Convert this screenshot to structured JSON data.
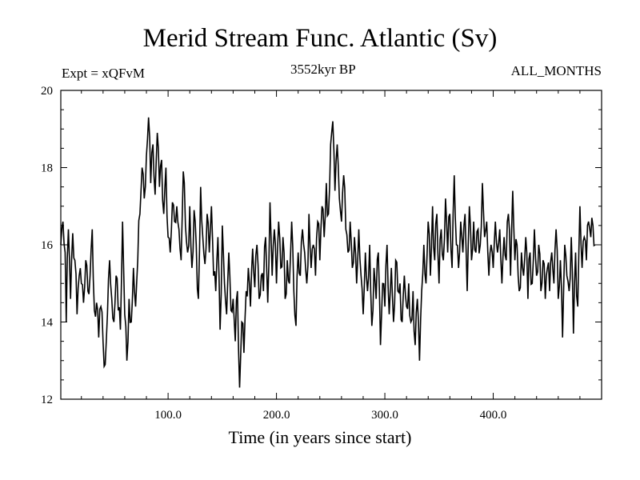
{
  "chart_data": {
    "type": "line",
    "title": "Merid Stream Func. Atlantic (Sv)",
    "subtitle_left": "Expt = xQFvM",
    "subtitle_center": "3552kyr BP",
    "subtitle_right": "ALL_MONTHS",
    "xlabel": "Time (in years since start)",
    "ylabel": "",
    "xlim": [
      1,
      500
    ],
    "ylim": [
      12,
      20
    ],
    "xticks": [
      100,
      200,
      300,
      400
    ],
    "xtick_labels": [
      "100.0",
      "200.0",
      "300.0",
      "400.0"
    ],
    "yticks": [
      12,
      14,
      16,
      18,
      20
    ],
    "ytick_labels": [
      "12",
      "14",
      "16",
      "18",
      "20"
    ],
    "color": "#000000",
    "anchors": [
      [
        1,
        16.0
      ],
      [
        3,
        16.6
      ],
      [
        5,
        15.8
      ],
      [
        6,
        14.0
      ],
      [
        8,
        16.4
      ],
      [
        10,
        14.6
      ],
      [
        12,
        16.3
      ],
      [
        14,
        15.6
      ],
      [
        16,
        14.2
      ],
      [
        18,
        15.2
      ],
      [
        20,
        15.0
      ],
      [
        22,
        14.5
      ],
      [
        24,
        15.6
      ],
      [
        26,
        14.8
      ],
      [
        28,
        15.2
      ],
      [
        30,
        16.4
      ],
      [
        32,
        14.3
      ],
      [
        34,
        14.5
      ],
      [
        36,
        13.6
      ],
      [
        38,
        14.4
      ],
      [
        40,
        13.5
      ],
      [
        42,
        12.9
      ],
      [
        44,
        14.2
      ],
      [
        46,
        15.6
      ],
      [
        48,
        14.6
      ],
      [
        50,
        14.0
      ],
      [
        52,
        15.2
      ],
      [
        54,
        14.3
      ],
      [
        56,
        13.8
      ],
      [
        58,
        16.6
      ],
      [
        60,
        14.2
      ],
      [
        62,
        13.0
      ],
      [
        64,
        14.6
      ],
      [
        66,
        14.0
      ],
      [
        68,
        15.4
      ],
      [
        70,
        14.4
      ],
      [
        72,
        15.6
      ],
      [
        74,
        16.8
      ],
      [
        76,
        18.0
      ],
      [
        78,
        17.2
      ],
      [
        80,
        18.3
      ],
      [
        82,
        19.3
      ],
      [
        84,
        17.6
      ],
      [
        86,
        18.6
      ],
      [
        88,
        17.3
      ],
      [
        90,
        18.9
      ],
      [
        92,
        17.5
      ],
      [
        94,
        18.2
      ],
      [
        96,
        16.8
      ],
      [
        98,
        18.0
      ],
      [
        100,
        16.2
      ],
      [
        102,
        15.8
      ],
      [
        104,
        17.1
      ],
      [
        106,
        16.6
      ],
      [
        108,
        17.0
      ],
      [
        110,
        16.4
      ],
      [
        112,
        15.6
      ],
      [
        114,
        17.9
      ],
      [
        116,
        16.5
      ],
      [
        118,
        15.8
      ],
      [
        120,
        17.0
      ],
      [
        122,
        15.4
      ],
      [
        124,
        16.9
      ],
      [
        126,
        16.0
      ],
      [
        128,
        14.6
      ],
      [
        130,
        17.5
      ],
      [
        132,
        16.2
      ],
      [
        134,
        15.5
      ],
      [
        136,
        16.8
      ],
      [
        138,
        15.8
      ],
      [
        140,
        17.0
      ],
      [
        142,
        15.2
      ],
      [
        144,
        14.8
      ],
      [
        146,
        16.2
      ],
      [
        148,
        13.8
      ],
      [
        150,
        16.5
      ],
      [
        152,
        15.0
      ],
      [
        154,
        14.2
      ],
      [
        156,
        15.8
      ],
      [
        158,
        14.3
      ],
      [
        160,
        14.6
      ],
      [
        162,
        13.5
      ],
      [
        164,
        14.8
      ],
      [
        166,
        12.3
      ],
      [
        168,
        14.0
      ],
      [
        170,
        13.2
      ],
      [
        172,
        14.8
      ],
      [
        174,
        15.4
      ],
      [
        176,
        14.4
      ],
      [
        178,
        15.9
      ],
      [
        180,
        14.9
      ],
      [
        182,
        16.0
      ],
      [
        184,
        14.6
      ],
      [
        186,
        15.2
      ],
      [
        188,
        14.8
      ],
      [
        190,
        16.2
      ],
      [
        192,
        14.5
      ],
      [
        194,
        17.1
      ],
      [
        196,
        15.2
      ],
      [
        198,
        16.4
      ],
      [
        200,
        15.0
      ],
      [
        202,
        16.6
      ],
      [
        204,
        15.4
      ],
      [
        206,
        16.2
      ],
      [
        208,
        14.6
      ],
      [
        210,
        15.6
      ],
      [
        212,
        15.0
      ],
      [
        214,
        16.6
      ],
      [
        216,
        14.8
      ],
      [
        218,
        13.9
      ],
      [
        220,
        15.8
      ],
      [
        222,
        15.2
      ],
      [
        224,
        16.4
      ],
      [
        226,
        15.8
      ],
      [
        228,
        15.0
      ],
      [
        230,
        16.8
      ],
      [
        232,
        15.4
      ],
      [
        234,
        16.0
      ],
      [
        236,
        15.2
      ],
      [
        238,
        16.6
      ],
      [
        240,
        15.6
      ],
      [
        242,
        17.0
      ],
      [
        244,
        16.2
      ],
      [
        246,
        17.6
      ],
      [
        248,
        16.8
      ],
      [
        250,
        18.6
      ],
      [
        252,
        19.2
      ],
      [
        254,
        17.4
      ],
      [
        256,
        18.6
      ],
      [
        258,
        17.2
      ],
      [
        260,
        16.6
      ],
      [
        262,
        17.8
      ],
      [
        264,
        16.4
      ],
      [
        266,
        15.8
      ],
      [
        268,
        16.6
      ],
      [
        270,
        15.4
      ],
      [
        272,
        16.2
      ],
      [
        274,
        15.0
      ],
      [
        276,
        16.4
      ],
      [
        278,
        15.2
      ],
      [
        280,
        14.2
      ],
      [
        282,
        15.8
      ],
      [
        284,
        14.8
      ],
      [
        286,
        16.0
      ],
      [
        288,
        13.9
      ],
      [
        290,
        15.4
      ],
      [
        292,
        14.6
      ],
      [
        294,
        15.8
      ],
      [
        296,
        13.4
      ],
      [
        298,
        15.0
      ],
      [
        300,
        14.4
      ],
      [
        302,
        16.0
      ],
      [
        304,
        14.2
      ],
      [
        306,
        15.4
      ],
      [
        308,
        14.0
      ],
      [
        310,
        15.6
      ],
      [
        312,
        14.8
      ],
      [
        314,
        15.0
      ],
      [
        316,
        14.0
      ],
      [
        318,
        15.2
      ],
      [
        320,
        14.4
      ],
      [
        322,
        15.0
      ],
      [
        324,
        14.0
      ],
      [
        326,
        14.8
      ],
      [
        328,
        13.4
      ],
      [
        330,
        14.6
      ],
      [
        332,
        13.0
      ],
      [
        334,
        14.8
      ],
      [
        336,
        16.0
      ],
      [
        338,
        15.0
      ],
      [
        340,
        16.6
      ],
      [
        342,
        15.2
      ],
      [
        344,
        17.0
      ],
      [
        346,
        15.6
      ],
      [
        348,
        16.8
      ],
      [
        350,
        15.0
      ],
      [
        352,
        16.4
      ],
      [
        354,
        15.6
      ],
      [
        356,
        17.2
      ],
      [
        358,
        15.8
      ],
      [
        360,
        16.8
      ],
      [
        362,
        15.4
      ],
      [
        364,
        17.8
      ],
      [
        366,
        16.0
      ],
      [
        368,
        15.4
      ],
      [
        370,
        16.6
      ],
      [
        372,
        15.8
      ],
      [
        374,
        16.8
      ],
      [
        376,
        14.8
      ],
      [
        378,
        17.0
      ],
      [
        380,
        15.6
      ],
      [
        382,
        16.6
      ],
      [
        384,
        15.8
      ],
      [
        386,
        16.4
      ],
      [
        388,
        16.0
      ],
      [
        390,
        17.6
      ],
      [
        392,
        16.2
      ],
      [
        394,
        16.6
      ],
      [
        396,
        15.2
      ],
      [
        398,
        16.0
      ],
      [
        400,
        15.4
      ],
      [
        402,
        16.6
      ],
      [
        404,
        15.8
      ],
      [
        406,
        16.4
      ],
      [
        408,
        15.0
      ],
      [
        410,
        16.2
      ],
      [
        412,
        15.6
      ],
      [
        414,
        16.8
      ],
      [
        416,
        15.2
      ],
      [
        418,
        17.4
      ],
      [
        420,
        15.6
      ],
      [
        422,
        16.0
      ],
      [
        424,
        14.8
      ],
      [
        426,
        15.8
      ],
      [
        428,
        15.2
      ],
      [
        430,
        16.2
      ],
      [
        432,
        14.6
      ],
      [
        434,
        15.8
      ],
      [
        436,
        15.0
      ],
      [
        438,
        16.4
      ],
      [
        440,
        15.2
      ],
      [
        442,
        16.0
      ],
      [
        444,
        14.8
      ],
      [
        446,
        15.6
      ],
      [
        448,
        14.6
      ],
      [
        450,
        15.4
      ],
      [
        452,
        14.8
      ],
      [
        454,
        15.8
      ],
      [
        456,
        15.0
      ],
      [
        458,
        16.4
      ],
      [
        460,
        14.6
      ],
      [
        462,
        15.6
      ],
      [
        464,
        13.6
      ],
      [
        466,
        16.0
      ],
      [
        468,
        15.2
      ],
      [
        470,
        14.8
      ],
      [
        472,
        16.2
      ],
      [
        474,
        13.7
      ],
      [
        476,
        15.8
      ],
      [
        478,
        14.4
      ],
      [
        480,
        17.0
      ],
      [
        482,
        15.4
      ],
      [
        484,
        16.2
      ],
      [
        486,
        15.6
      ],
      [
        488,
        16.6
      ],
      [
        490,
        16.2
      ],
      [
        492,
        16.5
      ],
      [
        494,
        16.0
      ]
    ]
  }
}
